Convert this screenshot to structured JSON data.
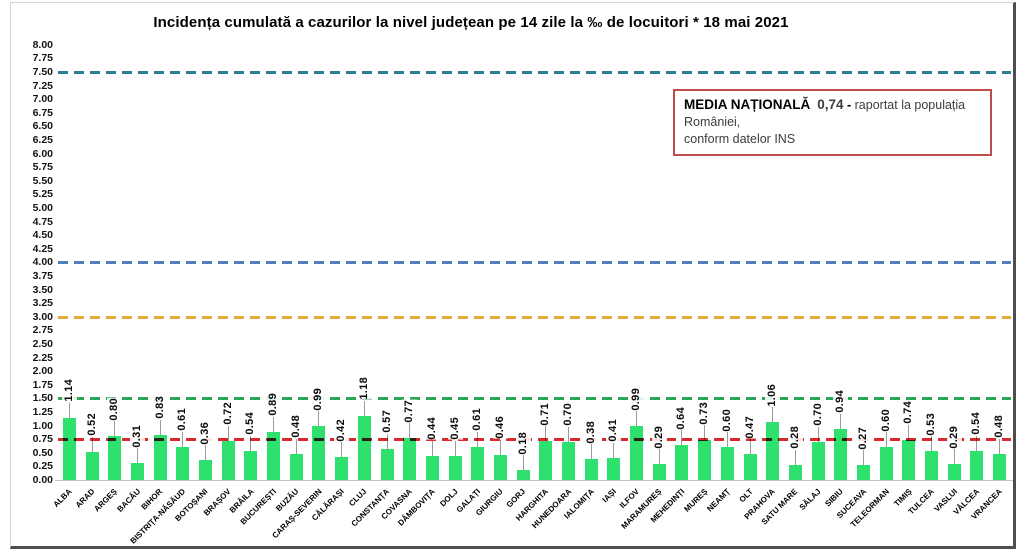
{
  "page": {
    "background": "#ffffff",
    "frame_border_light": "#d6d6d6",
    "frame_border_dark": "#4e4e4e"
  },
  "annotation": {
    "label": "MEDIA NAȚIONALĂ",
    "value": "0,74",
    "separator": "-",
    "text_line1": "raportat la populația României,",
    "text_line2": "conform datelor INS",
    "value_color": "#c00000",
    "border_color": "#bf4d4b"
  },
  "chart_data": {
    "type": "bar",
    "title": "Incidența cumulată a cazurilor la nivel județean pe 14 zile la ‰ de locuitori *  18 mai 2021",
    "xlabel": "",
    "ylabel": "",
    "ylim": [
      0,
      8
    ],
    "ytick_step": 0.25,
    "grid": false,
    "legend_position": "none",
    "bar_color": "#2ee06e",
    "leader_line_color": "#9b9b9b",
    "categories": [
      "ALBA",
      "ARAD",
      "ARGEȘ",
      "BACĂU",
      "BIHOR",
      "BISTRIȚA-NĂSĂUD",
      "BOTOȘANI",
      "BRAȘOV",
      "BRĂILA",
      "BUCUREȘTI",
      "BUZĂU",
      "CARAȘ-SEVERIN",
      "CĂLĂRAȘI",
      "CLUJ",
      "CONSTANȚA",
      "COVASNA",
      "DÂMBOVIȚA",
      "DOLJ",
      "GALAȚI",
      "GIURGIU",
      "GORJ",
      "HARGHITA",
      "HUNEDOARA",
      "IALOMIȚA",
      "IAȘI",
      "ILFOV",
      "MARAMUREȘ",
      "MEHEDINȚI",
      "MUREȘ",
      "NEAMȚ",
      "OLT",
      "PRAHOVA",
      "SATU MARE",
      "SĂLAJ",
      "SIBIU",
      "SUCEAVA",
      "TELEORMAN",
      "TIMIȘ",
      "TULCEA",
      "VASLUI",
      "VÂLCEA",
      "VRANCEA"
    ],
    "values": [
      1.14,
      0.52,
      0.8,
      0.31,
      0.83,
      0.61,
      0.36,
      0.72,
      0.54,
      0.89,
      0.48,
      0.99,
      0.42,
      1.18,
      0.57,
      0.77,
      0.44,
      0.45,
      0.61,
      0.46,
      0.18,
      0.71,
      0.7,
      0.38,
      0.41,
      0.99,
      0.29,
      0.64,
      0.73,
      0.6,
      0.47,
      1.06,
      0.28,
      0.7,
      0.94,
      0.27,
      0.6,
      0.74,
      0.53,
      0.29,
      0.54,
      0.48
    ],
    "reference_lines": [
      {
        "value": 7.5,
        "color": "#2d7e95"
      },
      {
        "value": 4.0,
        "color": "#4e81bd"
      },
      {
        "value": 3.0,
        "color": "#dfae3a"
      },
      {
        "value": 1.5,
        "color": "#2fa45d"
      },
      {
        "value": 0.75,
        "color": "#d62b2b"
      }
    ]
  }
}
